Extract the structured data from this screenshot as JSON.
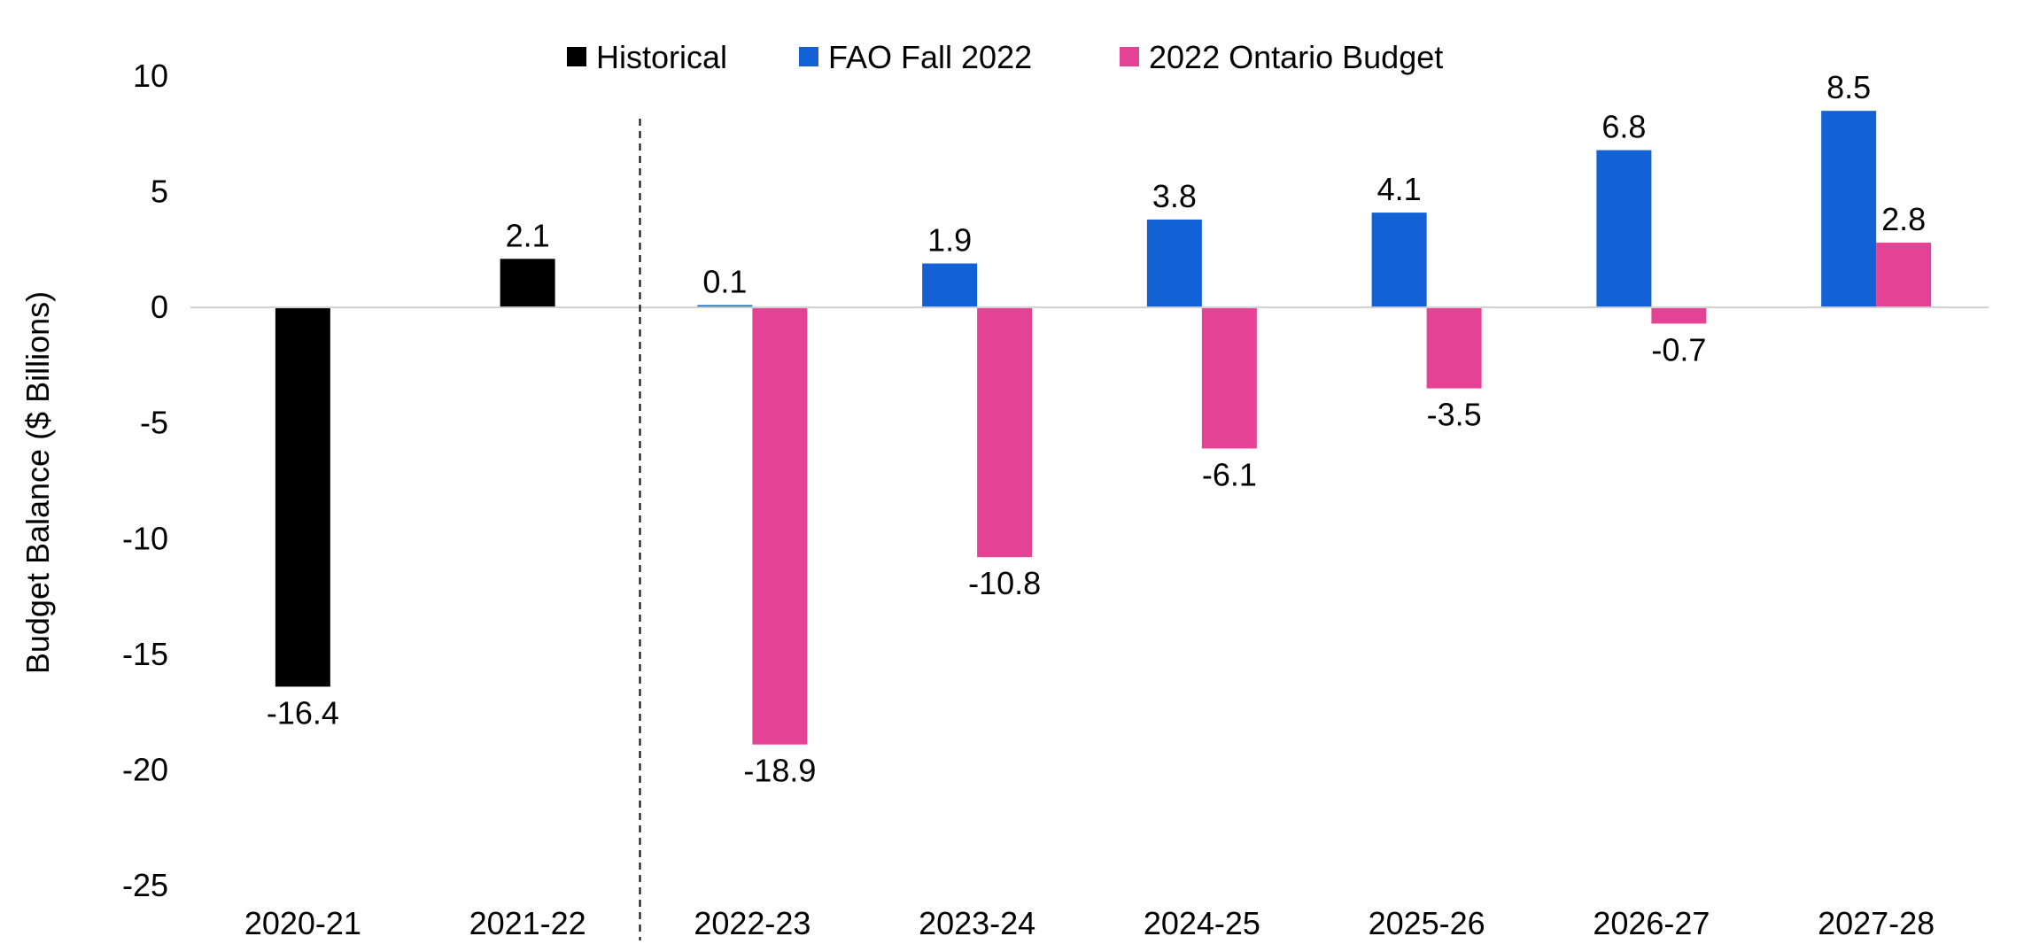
{
  "chart_data": {
    "type": "bar",
    "title": "",
    "xlabel": "",
    "ylabel": "Budget Balance ($ Billions)",
    "ylim": [
      -25,
      10
    ],
    "yticks": [
      10,
      5,
      0,
      -5,
      -10,
      -15,
      -20,
      -25
    ],
    "categories": [
      "2020-21",
      "2021-22",
      "2022-23",
      "2023-24",
      "2024-25",
      "2025-26",
      "2026-27",
      "2027-28"
    ],
    "divider_after_category": "2021-22",
    "legend_position": "top",
    "grid": false,
    "series": [
      {
        "name": "Historical",
        "color": "#000000",
        "values": [
          -16.4,
          2.1,
          null,
          null,
          null,
          null,
          null,
          null
        ],
        "labels": [
          "-16.4",
          "2.1",
          null,
          null,
          null,
          null,
          null,
          null
        ]
      },
      {
        "name": "FAO Fall 2022",
        "color": "#1262D6",
        "values": [
          null,
          null,
          0.1,
          1.9,
          3.8,
          4.1,
          6.8,
          8.5
        ],
        "labels": [
          null,
          null,
          "0.1",
          "1.9",
          "3.8",
          "4.1",
          "6.8",
          "8.5"
        ]
      },
      {
        "name": "2022 Ontario Budget",
        "color": "#E44395",
        "values": [
          null,
          null,
          -18.9,
          -10.8,
          -6.1,
          -3.5,
          -0.7,
          2.8
        ],
        "labels": [
          null,
          null,
          "-18.9",
          "-10.8",
          "-6.1",
          "-3.5",
          "-0.7",
          "2.8"
        ]
      }
    ]
  }
}
